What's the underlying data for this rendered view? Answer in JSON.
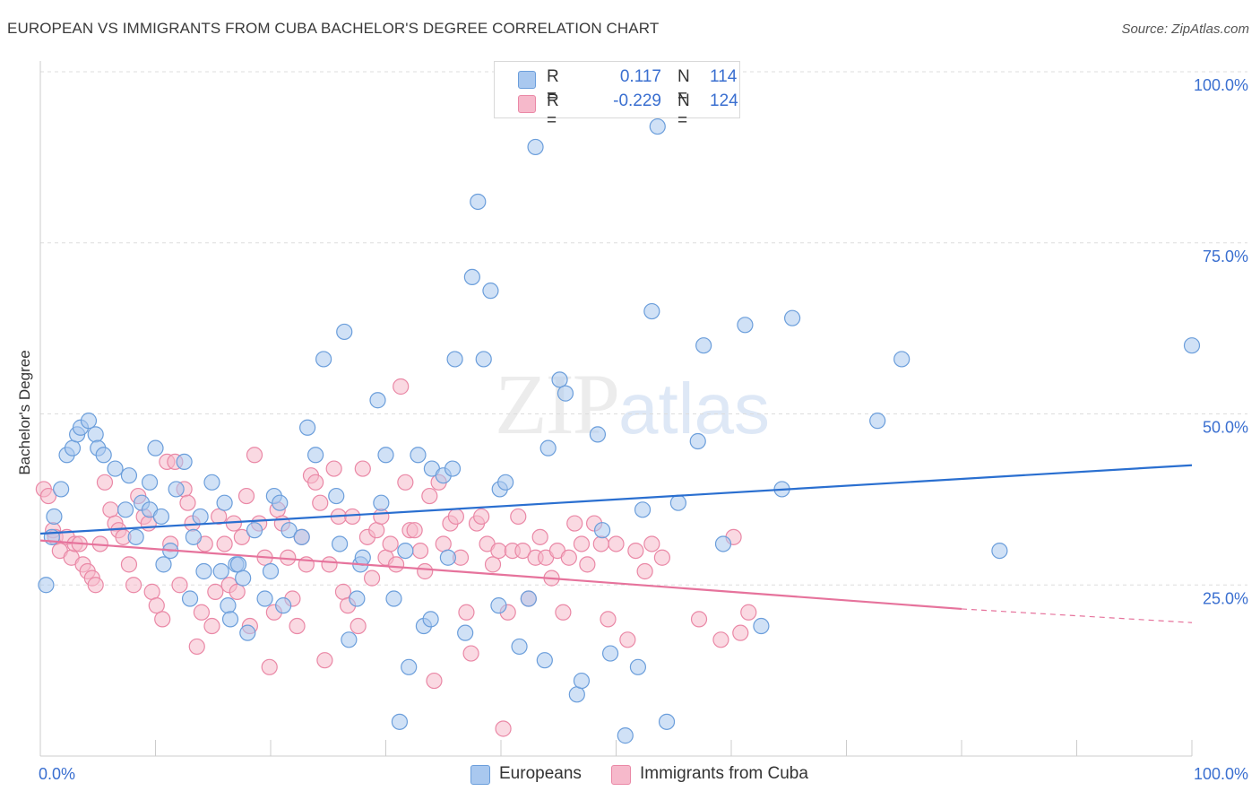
{
  "header": {
    "title": "EUROPEAN VS IMMIGRANTS FROM CUBA BACHELOR'S DEGREE CORRELATION CHART",
    "source": "Source: ZipAtlas.com"
  },
  "watermark": {
    "zip": "ZIP",
    "atlas": "atlas"
  },
  "legend": {
    "series1": {
      "r_label": "R =",
      "r_value": "0.117",
      "n_label": "N =",
      "n_value": "114"
    },
    "series2": {
      "r_label": "R =",
      "r_value": "-0.229",
      "n_label": "N =",
      "n_value": "124"
    }
  },
  "bottom_legend": {
    "europeans": "Europeans",
    "cuba": "Immigrants from Cuba"
  },
  "colors": {
    "blue_fill": "#a9c8ef",
    "blue_stroke": "#6b9edb",
    "blue_line": "#2a6fd0",
    "pink_fill": "#f6b9cb",
    "pink_stroke": "#ea88a6",
    "pink_line": "#e6739c",
    "tick_label": "#3a6fd0",
    "grid": "#dddddd"
  },
  "chart_data": {
    "type": "scatter",
    "title": "EUROPEAN VS IMMIGRANTS FROM CUBA BACHELOR'S DEGREE CORRELATION CHART",
    "xlabel": "",
    "ylabel": "Bachelor's Degree",
    "xlim": [
      0,
      100
    ],
    "ylim": [
      0,
      100
    ],
    "x_tick_labels": [
      "0.0%",
      "100.0%"
    ],
    "y_tick_labels": [
      "25.0%",
      "50.0%",
      "75.0%",
      "100.0%"
    ],
    "y_ticks": [
      25,
      50,
      75,
      100
    ],
    "grid": true,
    "series": [
      {
        "name": "Europeans",
        "r": 0.117,
        "n": 114,
        "trend": {
          "x": [
            0,
            100
          ],
          "y": [
            32.5,
            42.5
          ]
        },
        "points": [
          [
            0.5,
            25
          ],
          [
            1.0,
            32
          ],
          [
            1.2,
            35
          ],
          [
            1.8,
            39
          ],
          [
            2.3,
            44
          ],
          [
            2.8,
            45
          ],
          [
            3.2,
            47
          ],
          [
            3.5,
            48
          ],
          [
            4.2,
            49
          ],
          [
            4.8,
            47
          ],
          [
            5.0,
            45
          ],
          [
            5.5,
            44
          ],
          [
            6.5,
            42
          ],
          [
            7.4,
            36
          ],
          [
            7.7,
            41
          ],
          [
            8.3,
            32
          ],
          [
            8.8,
            37
          ],
          [
            9.5,
            40
          ],
          [
            9.5,
            36
          ],
          [
            10.0,
            45
          ],
          [
            10.5,
            35
          ],
          [
            10.7,
            28
          ],
          [
            11.3,
            30
          ],
          [
            11.8,
            39
          ],
          [
            12.5,
            43
          ],
          [
            13.0,
            23
          ],
          [
            13.3,
            32
          ],
          [
            13.9,
            35
          ],
          [
            14.2,
            27
          ],
          [
            14.9,
            40
          ],
          [
            15.7,
            27
          ],
          [
            16.0,
            37
          ],
          [
            16.3,
            22
          ],
          [
            16.5,
            20
          ],
          [
            17.0,
            28
          ],
          [
            17.2,
            28
          ],
          [
            17.6,
            26
          ],
          [
            18.0,
            18
          ],
          [
            18.6,
            33
          ],
          [
            19.5,
            23
          ],
          [
            20.0,
            27
          ],
          [
            20.3,
            38
          ],
          [
            20.8,
            37
          ],
          [
            21.1,
            22
          ],
          [
            21.6,
            33
          ],
          [
            22.7,
            32
          ],
          [
            23.2,
            48
          ],
          [
            23.9,
            44
          ],
          [
            24.6,
            58
          ],
          [
            25.7,
            38
          ],
          [
            26.0,
            31
          ],
          [
            26.4,
            62
          ],
          [
            26.8,
            17
          ],
          [
            27.5,
            23
          ],
          [
            27.8,
            28
          ],
          [
            28.0,
            29
          ],
          [
            29.3,
            52
          ],
          [
            29.6,
            37
          ],
          [
            30.0,
            44
          ],
          [
            30.7,
            23
          ],
          [
            31.2,
            5
          ],
          [
            31.7,
            30
          ],
          [
            32.0,
            13
          ],
          [
            32.8,
            44
          ],
          [
            33.3,
            19
          ],
          [
            33.9,
            20
          ],
          [
            34.0,
            42
          ],
          [
            35.0,
            41
          ],
          [
            35.4,
            29
          ],
          [
            35.8,
            42
          ],
          [
            36.0,
            58
          ],
          [
            36.9,
            18
          ],
          [
            37.5,
            70
          ],
          [
            38.0,
            81
          ],
          [
            38.5,
            58
          ],
          [
            39.1,
            68
          ],
          [
            39.8,
            22
          ],
          [
            39.9,
            39
          ],
          [
            40.4,
            40
          ],
          [
            41.6,
            16
          ],
          [
            42.4,
            23
          ],
          [
            43.0,
            89
          ],
          [
            43.8,
            14
          ],
          [
            44.1,
            45
          ],
          [
            45.1,
            55
          ],
          [
            45.6,
            53
          ],
          [
            46.6,
            9
          ],
          [
            47.0,
            11
          ],
          [
            48.4,
            47
          ],
          [
            48.8,
            33
          ],
          [
            49.5,
            15
          ],
          [
            50.8,
            3
          ],
          [
            51.9,
            13
          ],
          [
            52.3,
            36
          ],
          [
            53.1,
            65
          ],
          [
            53.6,
            92
          ],
          [
            54.4,
            5
          ],
          [
            55.4,
            37
          ],
          [
            57.1,
            46
          ],
          [
            57.6,
            60
          ],
          [
            59.3,
            31
          ],
          [
            61.2,
            63
          ],
          [
            62.6,
            19
          ],
          [
            64.4,
            39
          ],
          [
            65.3,
            64
          ],
          [
            72.7,
            49
          ],
          [
            74.8,
            58
          ],
          [
            83.3,
            30
          ],
          [
            100.0,
            60
          ]
        ]
      },
      {
        "name": "Immigrants from Cuba",
        "r": -0.229,
        "n": 124,
        "trend": {
          "x": [
            0,
            80
          ],
          "y": [
            31.5,
            21.5
          ]
        },
        "trend_dashed": {
          "x": [
            80,
            100
          ],
          "y": [
            21.5,
            19.5
          ]
        },
        "points": [
          [
            0.3,
            39
          ],
          [
            0.7,
            38
          ],
          [
            1.1,
            33
          ],
          [
            1.3,
            32
          ],
          [
            1.7,
            30
          ],
          [
            2.3,
            32
          ],
          [
            2.7,
            29
          ],
          [
            3.0,
            31
          ],
          [
            3.4,
            31
          ],
          [
            3.7,
            28
          ],
          [
            4.1,
            27
          ],
          [
            4.5,
            26
          ],
          [
            4.8,
            25
          ],
          [
            5.2,
            31
          ],
          [
            5.6,
            40
          ],
          [
            6.1,
            36
          ],
          [
            6.5,
            34
          ],
          [
            6.8,
            33
          ],
          [
            7.2,
            32
          ],
          [
            7.7,
            28
          ],
          [
            8.1,
            25
          ],
          [
            8.5,
            38
          ],
          [
            9.0,
            35
          ],
          [
            9.4,
            34
          ],
          [
            9.7,
            24
          ],
          [
            10.1,
            22
          ],
          [
            10.6,
            20
          ],
          [
            11.0,
            43
          ],
          [
            11.3,
            31
          ],
          [
            11.7,
            43
          ],
          [
            12.1,
            25
          ],
          [
            12.5,
            39
          ],
          [
            12.8,
            37
          ],
          [
            13.2,
            34
          ],
          [
            13.6,
            16
          ],
          [
            14.0,
            21
          ],
          [
            14.3,
            31
          ],
          [
            14.9,
            19
          ],
          [
            15.2,
            24
          ],
          [
            15.5,
            35
          ],
          [
            16.0,
            31
          ],
          [
            16.4,
            25
          ],
          [
            16.8,
            34
          ],
          [
            17.1,
            24
          ],
          [
            17.5,
            32
          ],
          [
            17.9,
            38
          ],
          [
            18.2,
            19
          ],
          [
            18.6,
            44
          ],
          [
            19.0,
            34
          ],
          [
            19.5,
            29
          ],
          [
            19.9,
            13
          ],
          [
            20.3,
            21
          ],
          [
            20.6,
            36
          ],
          [
            21.0,
            34
          ],
          [
            21.5,
            29
          ],
          [
            21.9,
            23
          ],
          [
            22.3,
            19
          ],
          [
            22.7,
            32
          ],
          [
            23.1,
            28
          ],
          [
            23.5,
            41
          ],
          [
            23.9,
            40
          ],
          [
            24.3,
            37
          ],
          [
            24.7,
            14
          ],
          [
            25.1,
            28
          ],
          [
            25.5,
            42
          ],
          [
            25.9,
            35
          ],
          [
            26.3,
            24
          ],
          [
            26.7,
            22
          ],
          [
            27.1,
            35
          ],
          [
            27.6,
            19
          ],
          [
            28.0,
            42
          ],
          [
            28.4,
            32
          ],
          [
            28.8,
            26
          ],
          [
            29.2,
            33
          ],
          [
            29.6,
            35
          ],
          [
            30.0,
            29
          ],
          [
            30.4,
            31
          ],
          [
            30.9,
            28
          ],
          [
            31.3,
            54
          ],
          [
            31.7,
            40
          ],
          [
            32.1,
            33
          ],
          [
            32.5,
            33
          ],
          [
            33.0,
            30
          ],
          [
            33.4,
            27
          ],
          [
            33.8,
            38
          ],
          [
            34.2,
            11
          ],
          [
            34.6,
            40
          ],
          [
            35.0,
            31
          ],
          [
            35.6,
            34
          ],
          [
            36.1,
            35
          ],
          [
            36.5,
            29
          ],
          [
            37.0,
            21
          ],
          [
            37.4,
            15
          ],
          [
            37.9,
            34
          ],
          [
            38.3,
            35
          ],
          [
            38.8,
            31
          ],
          [
            39.3,
            28
          ],
          [
            39.8,
            30
          ],
          [
            40.2,
            4
          ],
          [
            40.6,
            21
          ],
          [
            41.0,
            30
          ],
          [
            41.5,
            35
          ],
          [
            41.9,
            30
          ],
          [
            42.4,
            23
          ],
          [
            43.0,
            29
          ],
          [
            43.4,
            32
          ],
          [
            43.9,
            29
          ],
          [
            44.4,
            26
          ],
          [
            44.9,
            30
          ],
          [
            45.4,
            21
          ],
          [
            45.9,
            29
          ],
          [
            46.4,
            34
          ],
          [
            47.0,
            31
          ],
          [
            47.5,
            28
          ],
          [
            48.1,
            34
          ],
          [
            48.7,
            31
          ],
          [
            49.3,
            20
          ],
          [
            50.0,
            31
          ],
          [
            51.0,
            17
          ],
          [
            51.7,
            30
          ],
          [
            52.5,
            27
          ],
          [
            53.1,
            31
          ],
          [
            54.0,
            29
          ],
          [
            57.2,
            20
          ],
          [
            59.1,
            17
          ],
          [
            60.2,
            32
          ],
          [
            60.8,
            18
          ],
          [
            61.5,
            21
          ]
        ]
      }
    ]
  }
}
